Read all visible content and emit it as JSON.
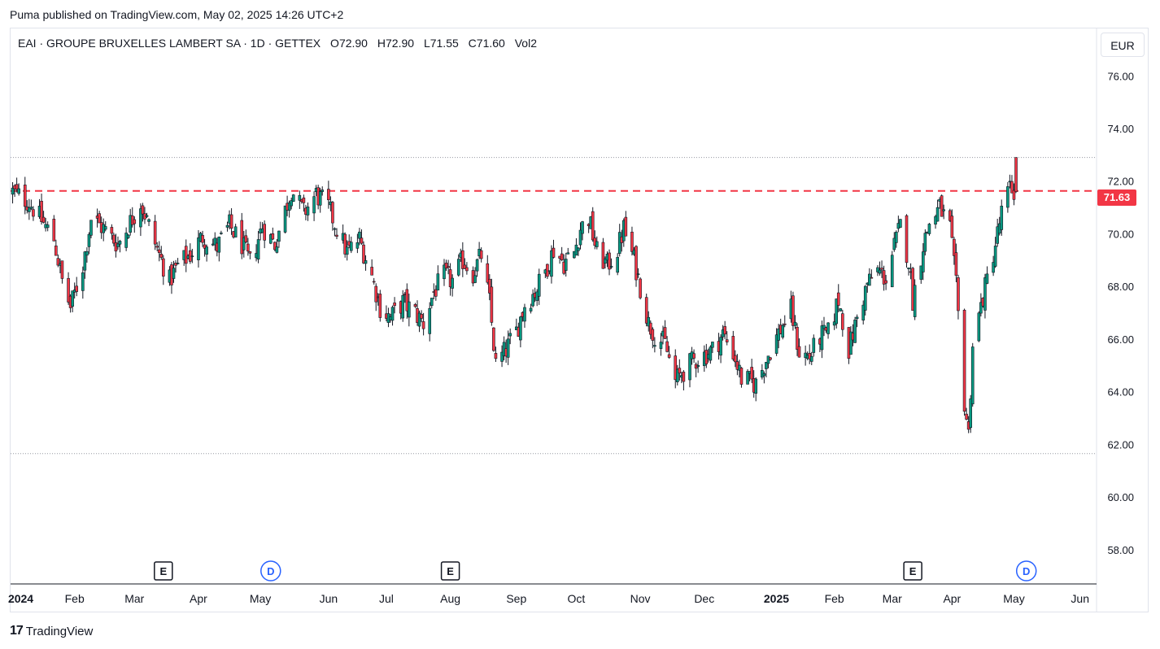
{
  "header": {
    "published_text": "Puma published on TradingView.com, May 02, 2025 14:26 UTC+2"
  },
  "legend": {
    "title": "EAI · GROUPE BRUXELLES LAMBERT SA · 1D · GETTEX",
    "open_label": "O",
    "open_value": "72.90",
    "high_label": "H",
    "high_value": "72.90",
    "low_label": "L",
    "low_value": "71.55",
    "close_label": "C",
    "close_value": "71.60",
    "vol_label": "Vol",
    "vol_value": "2"
  },
  "currency_button": "EUR",
  "price_tag": "71.63",
  "footer": {
    "brand": "TradingView",
    "logo_text": "17"
  },
  "colors": {
    "up": "#089981",
    "down": "#f23645",
    "line": "#f23645",
    "grid_dotted": "#9598a1"
  },
  "events": [
    {
      "type": "E",
      "date": "2024-03-15",
      "label": "E"
    },
    {
      "type": "D",
      "date": "2024-05-06",
      "label": "D"
    },
    {
      "type": "E",
      "date": "2024-08-01",
      "label": "E"
    },
    {
      "type": "E",
      "date": "2025-03-13",
      "label": "E"
    },
    {
      "type": "D",
      "date": "2025-05-07",
      "label": "D"
    }
  ],
  "chart_data": {
    "type": "candlestick",
    "title": "EAI · GROUPE BRUXELLES LAMBERT SA · 1D · GETTEX",
    "currency": "EUR",
    "y_ticks": [
      76.0,
      74.0,
      72.0,
      70.0,
      68.0,
      66.0,
      64.0,
      62.0,
      60.0,
      58.0
    ],
    "y_tick_labels": [
      "76.00",
      "74.00",
      "72.00",
      "70.00",
      "68.00",
      "66.00",
      "64.00",
      "62.00",
      "60.00",
      "58.00"
    ],
    "ylim": [
      56.7,
      77.8
    ],
    "x_range": [
      "2024-01-01",
      "2025-06-10"
    ],
    "x_ticks": [
      {
        "date": "2024-01-02",
        "label": "2024",
        "bold": true
      },
      {
        "date": "2024-02-01",
        "label": "Feb"
      },
      {
        "date": "2024-03-01",
        "label": "Mar"
      },
      {
        "date": "2024-04-01",
        "label": "Apr"
      },
      {
        "date": "2024-05-01",
        "label": "May"
      },
      {
        "date": "2024-06-03",
        "label": "Jun"
      },
      {
        "date": "2024-07-01",
        "label": "Jul"
      },
      {
        "date": "2024-08-01",
        "label": "Aug"
      },
      {
        "date": "2024-09-02",
        "label": "Sep"
      },
      {
        "date": "2024-10-01",
        "label": "Oct"
      },
      {
        "date": "2024-11-01",
        "label": "Nov"
      },
      {
        "date": "2024-12-02",
        "label": "Dec"
      },
      {
        "date": "2025-01-02",
        "label": "2025",
        "bold": true
      },
      {
        "date": "2025-02-03",
        "label": "Feb"
      },
      {
        "date": "2025-03-03",
        "label": "Mar"
      },
      {
        "date": "2025-04-01",
        "label": "Apr"
      },
      {
        "date": "2025-05-01",
        "label": "May"
      },
      {
        "date": "2025-06-02",
        "label": "Jun"
      }
    ],
    "horizontal_line": {
      "value": 71.63,
      "style": "dashed",
      "color": "#f23645"
    },
    "dotted_levels": [
      72.9,
      61.65
    ],
    "close_anchors": [
      [
        "2024-01-02",
        71.6
      ],
      [
        "2024-01-10",
        71.2
      ],
      [
        "2024-01-17",
        70.4
      ],
      [
        "2024-01-22",
        69.8
      ],
      [
        "2024-01-26",
        68.2
      ],
      [
        "2024-01-30",
        67.2
      ],
      [
        "2024-02-05",
        68.8
      ],
      [
        "2024-02-09",
        70.6
      ],
      [
        "2024-02-15",
        70.2
      ],
      [
        "2024-02-22",
        69.6
      ],
      [
        "2024-02-29",
        70.6
      ],
      [
        "2024-03-04",
        71.2
      ],
      [
        "2024-03-08",
        70.3
      ],
      [
        "2024-03-13",
        69.2
      ],
      [
        "2024-03-18",
        68.2
      ],
      [
        "2024-03-22",
        68.8
      ],
      [
        "2024-03-28",
        69.2
      ],
      [
        "2024-04-03",
        69.9
      ],
      [
        "2024-04-10",
        69.5
      ],
      [
        "2024-04-16",
        70.3
      ],
      [
        "2024-04-22",
        69.6
      ],
      [
        "2024-04-26",
        68.9
      ],
      [
        "2024-05-02",
        70.3
      ],
      [
        "2024-05-08",
        69.6
      ],
      [
        "2024-05-13",
        70.9
      ],
      [
        "2024-05-16",
        71.7
      ],
      [
        "2024-05-22",
        70.8
      ],
      [
        "2024-05-28",
        71.5
      ],
      [
        "2024-06-03",
        71.0
      ],
      [
        "2024-06-07",
        70.2
      ],
      [
        "2024-06-12",
        69.3
      ],
      [
        "2024-06-18",
        69.8
      ],
      [
        "2024-06-24",
        68.4
      ],
      [
        "2024-06-28",
        67.2
      ],
      [
        "2024-07-03",
        66.8
      ],
      [
        "2024-07-09",
        67.4
      ],
      [
        "2024-07-15",
        67.0
      ],
      [
        "2024-07-19",
        66.6
      ],
      [
        "2024-07-24",
        67.8
      ],
      [
        "2024-07-29",
        68.4
      ],
      [
        "2024-08-02",
        68.2
      ],
      [
        "2024-08-07",
        69.0
      ],
      [
        "2024-08-12",
        68.5
      ],
      [
        "2024-08-16",
        69.2
      ],
      [
        "2024-08-20",
        67.4
      ],
      [
        "2024-08-23",
        65.0
      ],
      [
        "2024-08-28",
        65.6
      ],
      [
        "2024-09-02",
        66.3
      ],
      [
        "2024-09-06",
        67.3
      ],
      [
        "2024-09-11",
        67.8
      ],
      [
        "2024-09-16",
        68.6
      ],
      [
        "2024-09-20",
        69.4
      ],
      [
        "2024-09-25",
        68.9
      ],
      [
        "2024-09-30",
        69.3
      ],
      [
        "2024-10-03",
        70.2
      ],
      [
        "2024-10-07",
        70.6
      ],
      [
        "2024-10-11",
        69.3
      ],
      [
        "2024-10-16",
        68.8
      ],
      [
        "2024-10-21",
        69.4
      ],
      [
        "2024-10-24",
        70.2
      ],
      [
        "2024-10-29",
        69.0
      ],
      [
        "2024-11-01",
        68.0
      ],
      [
        "2024-11-05",
        66.6
      ],
      [
        "2024-11-08",
        66.2
      ],
      [
        "2024-11-13",
        65.8
      ],
      [
        "2024-11-18",
        64.4
      ],
      [
        "2024-11-22",
        64.8
      ],
      [
        "2024-11-27",
        65.2
      ],
      [
        "2024-12-02",
        65.4
      ],
      [
        "2024-12-06",
        65.6
      ],
      [
        "2024-12-11",
        66.2
      ],
      [
        "2024-12-16",
        65.5
      ],
      [
        "2024-12-20",
        64.5
      ],
      [
        "2024-12-27",
        64.3
      ],
      [
        "2025-01-03",
        65.6
      ],
      [
        "2025-01-08",
        66.4
      ],
      [
        "2025-01-13",
        67.1
      ],
      [
        "2025-01-17",
        65.5
      ],
      [
        "2025-01-22",
        65.3
      ],
      [
        "2025-01-27",
        66.1
      ],
      [
        "2025-01-31",
        66.2
      ],
      [
        "2025-02-05",
        67.5
      ],
      [
        "2025-02-10",
        65.6
      ],
      [
        "2025-02-14",
        66.8
      ],
      [
        "2025-02-19",
        68.1
      ],
      [
        "2025-02-24",
        68.6
      ],
      [
        "2025-02-28",
        68.3
      ],
      [
        "2025-03-04",
        69.5
      ],
      [
        "2025-03-07",
        70.3
      ],
      [
        "2025-03-11",
        69.0
      ],
      [
        "2025-03-13",
        67.5
      ],
      [
        "2025-03-18",
        69.6
      ],
      [
        "2025-03-21",
        70.4
      ],
      [
        "2025-03-26",
        71.0
      ],
      [
        "2025-03-31",
        70.2
      ],
      [
        "2025-04-03",
        68.0
      ],
      [
        "2025-04-07",
        63.6
      ],
      [
        "2025-04-09",
        62.4
      ],
      [
        "2025-04-11",
        65.8
      ],
      [
        "2025-04-16",
        67.6
      ],
      [
        "2025-04-22",
        69.6
      ],
      [
        "2025-04-25",
        70.8
      ],
      [
        "2025-04-29",
        71.7
      ],
      [
        "2025-05-02",
        71.6
      ]
    ]
  }
}
